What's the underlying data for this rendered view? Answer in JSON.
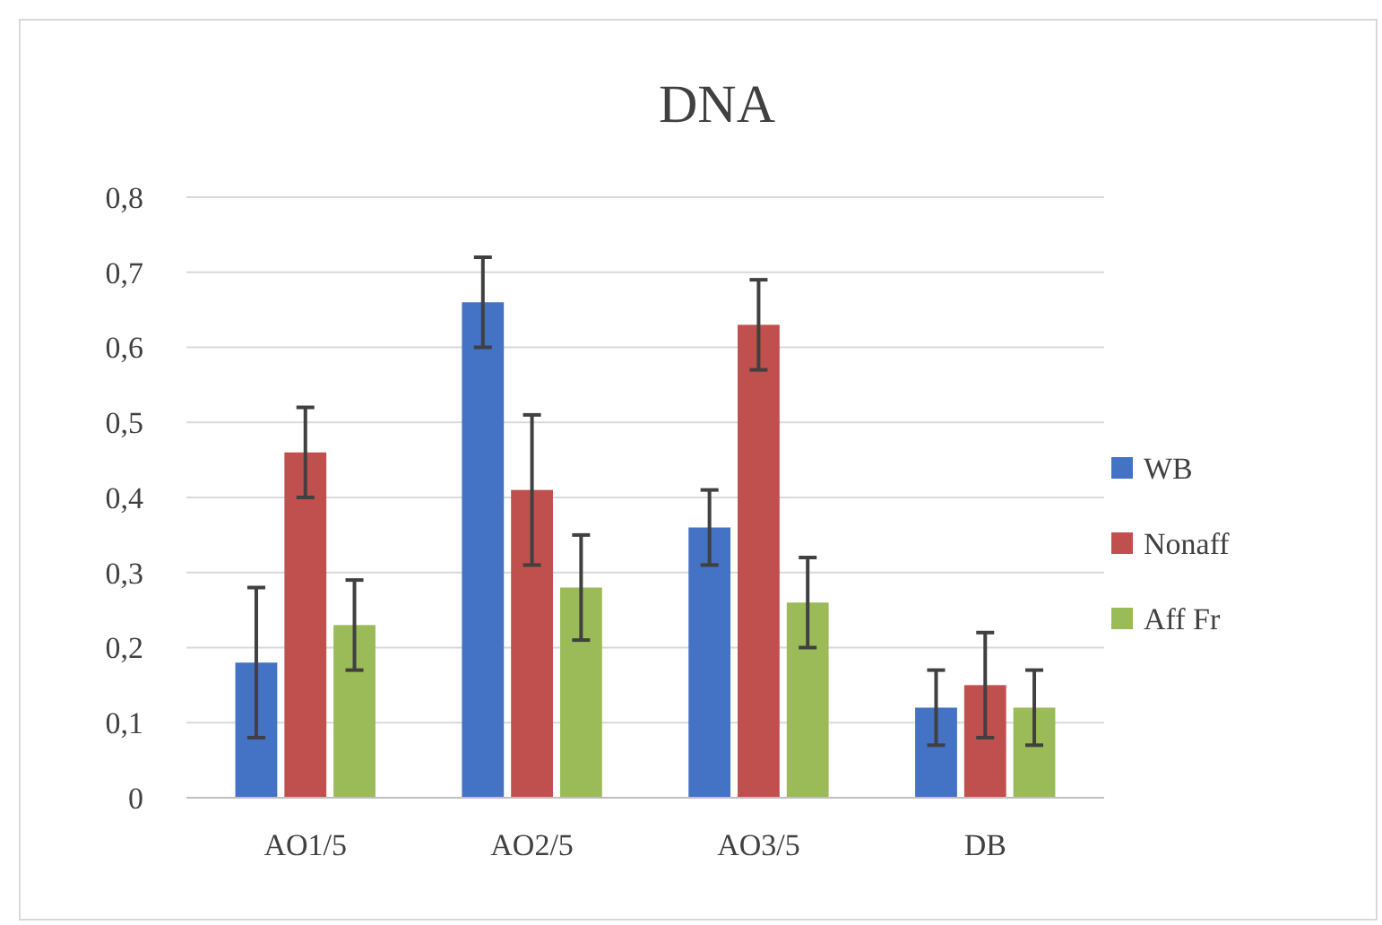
{
  "chart_data": {
    "type": "bar",
    "title": "DNA",
    "categories": [
      "AO1/5",
      "AO2/5",
      "AO3/5",
      "DB"
    ],
    "series": [
      {
        "name": "WB",
        "color": "#4472c4",
        "values": [
          0.18,
          0.66,
          0.36,
          0.12
        ],
        "errors": [
          [
            0.08,
            0.28
          ],
          [
            0.6,
            0.72
          ],
          [
            0.31,
            0.41
          ],
          [
            0.07,
            0.17
          ]
        ]
      },
      {
        "name": "Nonaff",
        "color": "#c0504d",
        "values": [
          0.46,
          0.41,
          0.63,
          0.15
        ],
        "errors": [
          [
            0.4,
            0.52
          ],
          [
            0.31,
            0.51
          ],
          [
            0.57,
            0.69
          ],
          [
            0.08,
            0.22
          ]
        ]
      },
      {
        "name": "Aff Fr",
        "color": "#9bbb59",
        "values": [
          0.23,
          0.28,
          0.26,
          0.12
        ],
        "errors": [
          [
            0.17,
            0.29
          ],
          [
            0.21,
            0.35
          ],
          [
            0.2,
            0.32
          ],
          [
            0.07,
            0.17
          ]
        ]
      }
    ],
    "ylim": [
      0,
      0.8
    ],
    "yticks": [
      0,
      {
        "value": 0.1,
        "label": "0,1"
      },
      {
        "value": 0.2,
        "label": "0,2"
      },
      {
        "value": 0.3,
        "label": "0,3"
      },
      {
        "value": 0.4,
        "label": "0,4"
      },
      {
        "value": 0.5,
        "label": "0,5"
      },
      {
        "value": 0.6,
        "label": "0,6"
      },
      {
        "value": 0.7,
        "label": "0,7"
      },
      {
        "value": 0.8,
        "label": "0,8"
      }
    ],
    "grid": "y",
    "legend": "right"
  }
}
